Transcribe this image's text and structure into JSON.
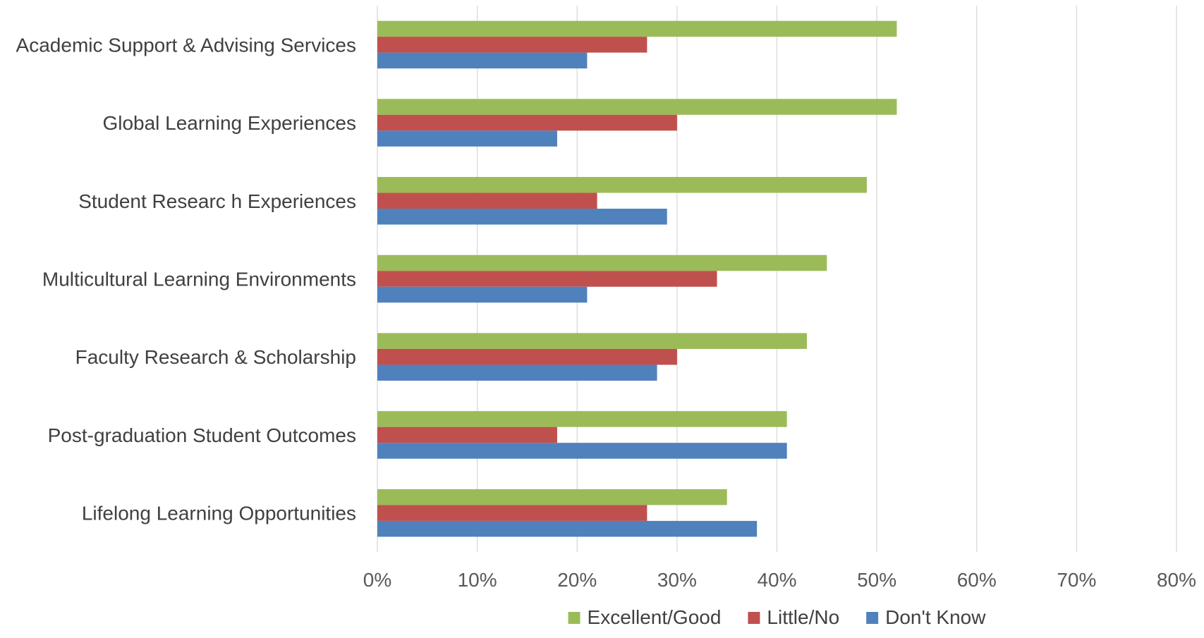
{
  "chart_data": {
    "type": "bar",
    "orientation": "horizontal",
    "categories": [
      "Academic Support & Advising Services",
      "Global Learning Experiences",
      "Student Researc h Experiences",
      "Multicultural Learning Environments",
      "Faculty Research & Scholarship",
      "Post-graduation Student Outcomes",
      "Lifelong Learning Opportunities"
    ],
    "series": [
      {
        "name": "Excellent/Good",
        "color": "#9bbb59",
        "values": [
          52,
          52,
          49,
          45,
          43,
          41,
          35
        ]
      },
      {
        "name": "Little/No",
        "color": "#c0504d",
        "values": [
          27,
          30,
          22,
          34,
          30,
          18,
          27
        ]
      },
      {
        "name": "Don't Know",
        "color": "#4f81bd",
        "values": [
          21,
          18,
          29,
          21,
          28,
          41,
          38
        ]
      }
    ],
    "x_ticks": [
      "0%",
      "10%",
      "20%",
      "30%",
      "40%",
      "50%",
      "60%",
      "70%",
      "80%"
    ],
    "xlim": [
      0,
      80
    ],
    "value_unit": "%",
    "grid": "vertical",
    "legend_position": "bottom",
    "title": "",
    "xlabel": "",
    "ylabel": ""
  }
}
